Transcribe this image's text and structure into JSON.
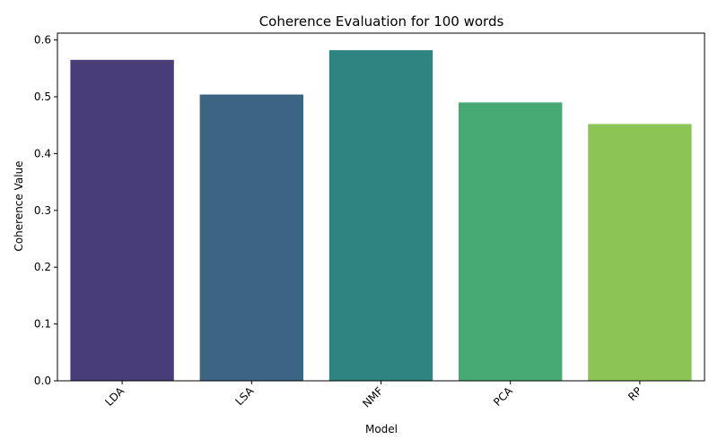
{
  "chart_data": {
    "type": "bar",
    "title": "Coherence Evaluation for 100 words",
    "xlabel": "Model",
    "ylabel": "Coherence Value",
    "categories": [
      "LDA",
      "LSA",
      "NMF",
      "PCA",
      "RP"
    ],
    "values": [
      0.565,
      0.504,
      0.582,
      0.49,
      0.452
    ],
    "colors": [
      "#483d78",
      "#3b6582",
      "#2e8480",
      "#47a974",
      "#8dc456"
    ],
    "ylim": [
      0,
      0.612
    ],
    "yticks": [
      "0.0",
      "0.1",
      "0.2",
      "0.3",
      "0.4",
      "0.5",
      "0.6"
    ],
    "grid": false,
    "legend": "none"
  }
}
